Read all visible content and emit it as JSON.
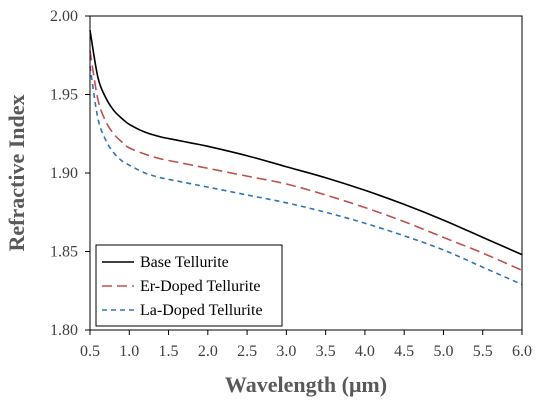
{
  "chart_data": {
    "type": "line",
    "xlabel": "Wavelength (μm)",
    "ylabel": "Refractive Index",
    "xlim": [
      0.5,
      6.0
    ],
    "ylim": [
      1.8,
      2.0
    ],
    "x_ticks": [
      "0.5",
      "1.0",
      "1.5",
      "2.0",
      "2.5",
      "3.0",
      "3.5",
      "4.0",
      "4.5",
      "5.0",
      "5.5",
      "6.0"
    ],
    "y_ticks": [
      "1.80",
      "1.85",
      "1.90",
      "1.95",
      "2.00"
    ],
    "grid": false,
    "legend": "bottom-left",
    "series": [
      {
        "name": "Base Tellurite",
        "color": "#000000",
        "dash": "solid",
        "x": [
          0.5,
          0.6,
          0.7,
          0.8,
          0.9,
          1.0,
          1.2,
          1.4,
          1.6,
          1.8,
          2.0,
          2.5,
          3.0,
          3.5,
          4.0,
          4.5,
          5.0,
          5.5,
          6.0
        ],
        "y": [
          1.991,
          1.961,
          1.948,
          1.94,
          1.935,
          1.931,
          1.926,
          1.923,
          1.921,
          1.919,
          1.917,
          1.911,
          1.904,
          1.897,
          1.889,
          1.88,
          1.87,
          1.859,
          1.848
        ]
      },
      {
        "name": "Er-Doped Tellurite",
        "color": "#c0504d",
        "dash": "long-dash",
        "x": [
          0.5,
          0.6,
          0.7,
          0.8,
          0.9,
          1.0,
          1.2,
          1.4,
          1.6,
          1.8,
          2.0,
          2.5,
          3.0,
          3.5,
          4.0,
          4.5,
          5.0,
          5.5,
          6.0
        ],
        "y": [
          1.978,
          1.947,
          1.933,
          1.925,
          1.92,
          1.916,
          1.912,
          1.909,
          1.907,
          1.905,
          1.903,
          1.898,
          1.893,
          1.886,
          1.878,
          1.869,
          1.859,
          1.849,
          1.838
        ]
      },
      {
        "name": "La-Doped Tellurite",
        "color": "#2e75b6",
        "dash": "short-dash",
        "x": [
          0.5,
          0.6,
          0.7,
          0.8,
          0.9,
          1.0,
          1.2,
          1.4,
          1.6,
          1.8,
          2.0,
          2.5,
          3.0,
          3.5,
          4.0,
          4.5,
          5.0,
          5.5,
          6.0
        ],
        "y": [
          1.968,
          1.935,
          1.921,
          1.913,
          1.908,
          1.905,
          1.9,
          1.897,
          1.895,
          1.893,
          1.891,
          1.886,
          1.881,
          1.875,
          1.868,
          1.86,
          1.851,
          1.84,
          1.829
        ]
      }
    ]
  }
}
